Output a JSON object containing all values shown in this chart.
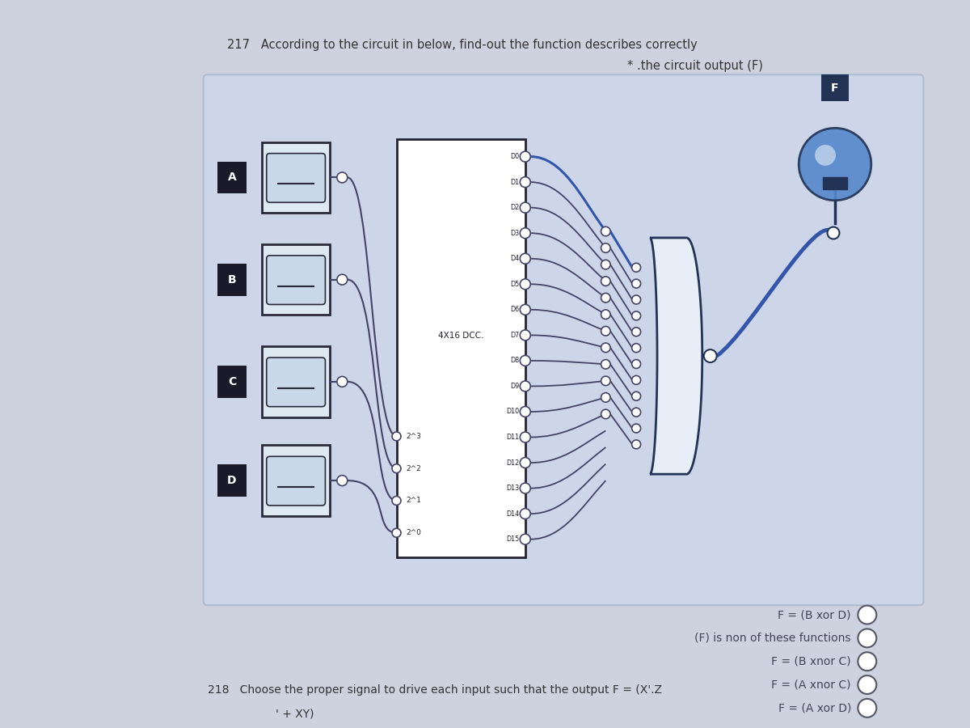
{
  "bg_color": "#cdd2de",
  "circuit_bg": "#cdd5e8",
  "title_line1": "217   According to the circuit in below, find-out the function describes correctly",
  "title_line2": "* .the circuit output (F)",
  "question2_line1": "218   Choose the proper signal to drive each input such that the output F = (X'.Z",
  "question2_line2": "' + XY)",
  "inputs": [
    "A",
    "B",
    "C",
    "D"
  ],
  "mux_label": "4X16 DCC.",
  "mux_sel_labels": [
    "2^3",
    "2^2",
    "2^1",
    "2^0"
  ],
  "data_labels": [
    "D0",
    "D1",
    "D2",
    "D3",
    "D4",
    "D5",
    "D6",
    "D7",
    "D8",
    "D9",
    "D10",
    "D11",
    "D12",
    "D13",
    "D14",
    "D15"
  ],
  "output_label": "F",
  "options": [
    "F = (B xor D)",
    "(F) is non of these functions",
    "F = (B xnor C)",
    "F = (A xnor C)",
    "F = (A xor D)"
  ],
  "wire_color_active": "#3355aa",
  "wire_color_normal": "#444466",
  "text_color": "#333333",
  "option_text_color": "#444455",
  "switch_border": "#2a2a3a",
  "switch_fill": "#dde8f0",
  "switch_inner": "#c8d8e8",
  "label_bg": "#1a1a2a",
  "mux_fill": "white",
  "mux_border": "#222233",
  "gate_fill": "#e8eef8",
  "gate_border": "#223355",
  "bulb_blue": "#5588cc",
  "bulb_dark": "#223355",
  "f_label_bg": "#223355"
}
